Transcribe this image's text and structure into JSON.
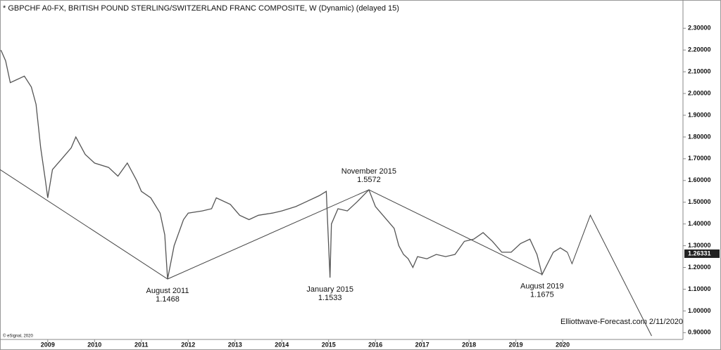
{
  "chart_data": {
    "type": "line",
    "title": "* GBPCHF A0-FX, BRITISH POUND STERLING/SWITZERLAND FRANC COMPOSITE, W (Dynamic) (delayed 15)",
    "footer": "Elliottwave-Forecast.com 2/11/2020",
    "copyright": "© eSignal, 2020",
    "last_price": {
      "value": 1.26331,
      "label": "1.26331"
    },
    "xlim": [
      2007.98,
      2022.57
    ],
    "ylim": [
      0.885,
      2.43
    ],
    "xticks": [
      2009,
      2010,
      2011,
      2012,
      2013,
      2014,
      2015,
      2016,
      2017,
      2018,
      2019,
      2020
    ],
    "yticks": [
      {
        "value": 0.9,
        "label": "0.90000"
      },
      {
        "value": 1.0,
        "label": "1.00000"
      },
      {
        "value": 1.1,
        "label": "1.10000"
      },
      {
        "value": 1.2,
        "label": "1.20000"
      },
      {
        "value": 1.3,
        "label": "1.30000"
      },
      {
        "value": 1.4,
        "label": "1.40000"
      },
      {
        "value": 1.5,
        "label": "1.50000"
      },
      {
        "value": 1.6,
        "label": "1.60000"
      },
      {
        "value": 1.7,
        "label": "1.70000"
      },
      {
        "value": 1.8,
        "label": "1.80000"
      },
      {
        "value": 1.9,
        "label": "1.90000"
      },
      {
        "value": 2.0,
        "label": "2.00000"
      },
      {
        "value": 2.1,
        "label": "2.10000"
      },
      {
        "value": 2.2,
        "label": "2.20000"
      },
      {
        "value": 2.3,
        "label": "2.30000"
      }
    ],
    "series": [
      {
        "color": "#555555",
        "x": [
          2008.0,
          2008.1,
          2008.2,
          2008.3,
          2008.5,
          2008.65,
          2008.75,
          2008.85,
          2008.95,
          2009.0,
          2009.1,
          2009.3,
          2009.5,
          2009.6,
          2009.8,
          2010.0,
          2010.3,
          2010.5,
          2010.7,
          2010.9,
          2011.0,
          2011.2,
          2011.4,
          2011.5,
          2011.56,
          2011.7,
          2011.9,
          2012.0,
          2012.3,
          2012.5,
          2012.6,
          2012.9,
          2013.1,
          2013.3,
          2013.5,
          2013.8,
          2014.0,
          2014.3,
          2014.5,
          2014.8,
          2014.95,
          2015.03,
          2015.06,
          2015.2,
          2015.4,
          2015.6,
          2015.86,
          2016.0,
          2016.2,
          2016.4,
          2016.5,
          2016.6,
          2016.7,
          2016.8,
          2016.9,
          2017.1,
          2017.3,
          2017.5,
          2017.7,
          2017.9,
          2018.1,
          2018.3,
          2018.5,
          2018.7,
          2018.9,
          2019.1,
          2019.3,
          2019.45,
          2019.56,
          2019.8,
          2019.95,
          2020.1
        ],
        "values": [
          2.2,
          2.15,
          2.05,
          2.06,
          2.08,
          2.03,
          1.95,
          1.75,
          1.6,
          1.52,
          1.65,
          1.7,
          1.75,
          1.8,
          1.72,
          1.68,
          1.66,
          1.62,
          1.68,
          1.6,
          1.55,
          1.52,
          1.45,
          1.35,
          1.1468,
          1.3,
          1.42,
          1.45,
          1.46,
          1.47,
          1.52,
          1.49,
          1.44,
          1.42,
          1.44,
          1.45,
          1.46,
          1.48,
          1.5,
          1.53,
          1.55,
          1.1533,
          1.4,
          1.47,
          1.46,
          1.5,
          1.5572,
          1.48,
          1.43,
          1.38,
          1.3,
          1.26,
          1.24,
          1.2,
          1.25,
          1.24,
          1.26,
          1.25,
          1.26,
          1.32,
          1.33,
          1.36,
          1.32,
          1.27,
          1.27,
          1.31,
          1.33,
          1.26,
          1.1675,
          1.27,
          1.29,
          1.27
        ]
      }
    ],
    "trendline": {
      "color": "#444444",
      "x": [
        2007.98,
        2011.56,
        2015.86,
        2019.56
      ],
      "values": [
        1.65,
        1.1468,
        1.5572,
        1.1675
      ]
    },
    "projection": {
      "color": "#444444",
      "x": [
        2020.1,
        2020.2,
        2020.59,
        2021.9
      ],
      "values": [
        1.27,
        1.217,
        1.44,
        0.885
      ]
    },
    "annotations": [
      {
        "text": "August 2011",
        "value_label": "1.1468",
        "x": 2011.56,
        "value": 1.1468,
        "position": "below"
      },
      {
        "text": "January 2015",
        "value_label": "1.1533",
        "x": 2015.03,
        "value": 1.1533,
        "position": "below"
      },
      {
        "text": "November 2015",
        "value_label": "1.5572",
        "x": 2015.86,
        "value": 1.5572,
        "position": "above"
      },
      {
        "text": "August 2019",
        "value_label": "1.1675",
        "x": 2019.56,
        "value": 1.1675,
        "position": "below"
      }
    ]
  }
}
